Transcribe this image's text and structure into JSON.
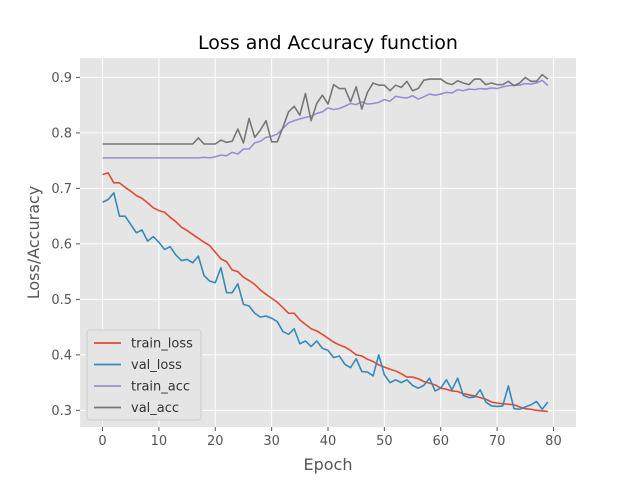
{
  "chart_data": {
    "type": "line",
    "title": "Loss and Accuracy function",
    "xlabel": "Epoch",
    "ylabel": "Loss/Accuracy",
    "xlim": [
      -4,
      84
    ],
    "ylim": [
      0.27,
      0.935
    ],
    "xticks": [
      0,
      10,
      20,
      30,
      40,
      50,
      60,
      70,
      80
    ],
    "yticks": [
      0.3,
      0.4,
      0.5,
      0.6,
      0.7,
      0.8,
      0.9
    ],
    "xtick_labels": [
      "0",
      "10",
      "20",
      "30",
      "40",
      "50",
      "60",
      "70",
      "80"
    ],
    "ytick_labels": [
      "0.3",
      "0.4",
      "0.5",
      "0.6",
      "0.7",
      "0.8",
      "0.9"
    ],
    "grid": true,
    "legend_position": "lower-left",
    "colors": {
      "background": "#e5e5e5",
      "grid": "#ffffff",
      "train_loss": "#e24a33",
      "val_loss": "#348abd",
      "train_acc": "#988ed5",
      "val_acc": "#777777"
    },
    "series": [
      {
        "name": "train_loss",
        "values": [
          0.725,
          0.728,
          0.71,
          0.71,
          0.702,
          0.695,
          0.687,
          0.682,
          0.674,
          0.665,
          0.66,
          0.657,
          0.648,
          0.64,
          0.63,
          0.624,
          0.617,
          0.61,
          0.603,
          0.597,
          0.585,
          0.573,
          0.568,
          0.553,
          0.55,
          0.54,
          0.534,
          0.527,
          0.517,
          0.509,
          0.502,
          0.495,
          0.485,
          0.475,
          0.475,
          0.463,
          0.455,
          0.447,
          0.443,
          0.437,
          0.43,
          0.423,
          0.418,
          0.414,
          0.408,
          0.4,
          0.398,
          0.392,
          0.388,
          0.382,
          0.378,
          0.374,
          0.371,
          0.366,
          0.36,
          0.36,
          0.357,
          0.352,
          0.349,
          0.346,
          0.34,
          0.338,
          0.335,
          0.334,
          0.33,
          0.328,
          0.326,
          0.323,
          0.32,
          0.315,
          0.313,
          0.312,
          0.311,
          0.31,
          0.306,
          0.303,
          0.302,
          0.3,
          0.299,
          0.298
        ]
      },
      {
        "name": "val_loss",
        "values": [
          0.675,
          0.68,
          0.692,
          0.65,
          0.65,
          0.635,
          0.62,
          0.625,
          0.605,
          0.613,
          0.603,
          0.59,
          0.595,
          0.58,
          0.57,
          0.572,
          0.566,
          0.578,
          0.543,
          0.533,
          0.53,
          0.557,
          0.512,
          0.512,
          0.528,
          0.491,
          0.488,
          0.475,
          0.468,
          0.47,
          0.466,
          0.46,
          0.442,
          0.437,
          0.447,
          0.42,
          0.425,
          0.415,
          0.425,
          0.412,
          0.408,
          0.395,
          0.398,
          0.383,
          0.377,
          0.393,
          0.37,
          0.369,
          0.362,
          0.4,
          0.364,
          0.35,
          0.355,
          0.35,
          0.355,
          0.345,
          0.34,
          0.345,
          0.358,
          0.335,
          0.34,
          0.355,
          0.337,
          0.358,
          0.327,
          0.323,
          0.324,
          0.337,
          0.315,
          0.308,
          0.307,
          0.308,
          0.344,
          0.303,
          0.302,
          0.306,
          0.31,
          0.316,
          0.302,
          0.315
        ]
      },
      {
        "name": "train_acc",
        "values": [
          0.755,
          0.755,
          0.755,
          0.755,
          0.755,
          0.755,
          0.755,
          0.755,
          0.755,
          0.755,
          0.755,
          0.755,
          0.755,
          0.755,
          0.755,
          0.755,
          0.755,
          0.755,
          0.756,
          0.755,
          0.757,
          0.76,
          0.759,
          0.765,
          0.762,
          0.771,
          0.771,
          0.782,
          0.785,
          0.792,
          0.794,
          0.798,
          0.808,
          0.818,
          0.822,
          0.825,
          0.828,
          0.83,
          0.835,
          0.838,
          0.845,
          0.842,
          0.844,
          0.848,
          0.853,
          0.851,
          0.856,
          0.852,
          0.853,
          0.855,
          0.86,
          0.857,
          0.866,
          0.864,
          0.863,
          0.867,
          0.861,
          0.865,
          0.87,
          0.868,
          0.87,
          0.873,
          0.872,
          0.878,
          0.876,
          0.879,
          0.878,
          0.88,
          0.879,
          0.881,
          0.88,
          0.883,
          0.885,
          0.886,
          0.886,
          0.889,
          0.888,
          0.89,
          0.895,
          0.885
        ]
      },
      {
        "name": "val_acc",
        "values": [
          0.78,
          0.78,
          0.78,
          0.78,
          0.78,
          0.78,
          0.78,
          0.78,
          0.78,
          0.78,
          0.78,
          0.78,
          0.78,
          0.78,
          0.78,
          0.78,
          0.78,
          0.791,
          0.78,
          0.78,
          0.78,
          0.787,
          0.783,
          0.785,
          0.807,
          0.782,
          0.826,
          0.792,
          0.805,
          0.822,
          0.784,
          0.784,
          0.81,
          0.838,
          0.848,
          0.832,
          0.871,
          0.822,
          0.853,
          0.868,
          0.852,
          0.887,
          0.88,
          0.88,
          0.856,
          0.883,
          0.843,
          0.873,
          0.89,
          0.886,
          0.886,
          0.876,
          0.886,
          0.882,
          0.893,
          0.876,
          0.88,
          0.895,
          0.897,
          0.897,
          0.897,
          0.89,
          0.887,
          0.894,
          0.89,
          0.887,
          0.897,
          0.897,
          0.887,
          0.89,
          0.887,
          0.887,
          0.893,
          0.885,
          0.89,
          0.9,
          0.893,
          0.893,
          0.905,
          0.897
        ]
      }
    ]
  }
}
